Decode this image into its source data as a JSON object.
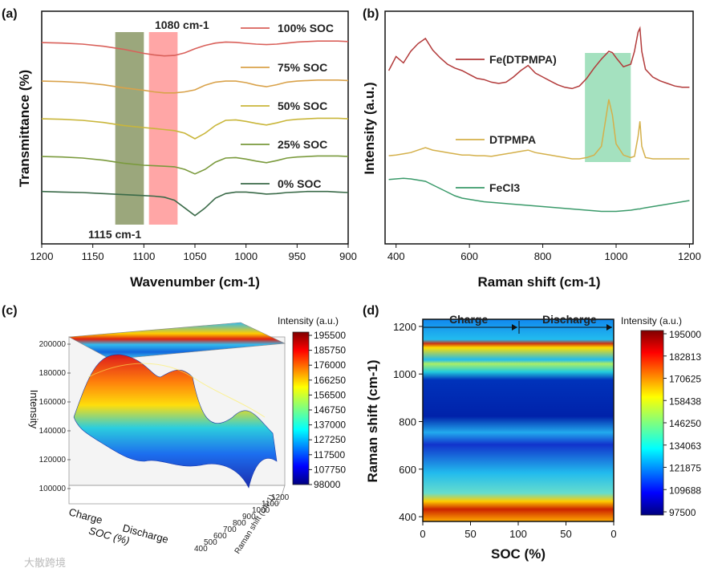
{
  "panels": {
    "a": "(a)",
    "b": "(b)",
    "c": "(c)",
    "d": "(d)"
  },
  "watermark": "大散跨境",
  "colors": {
    "soc100": "#d9605a",
    "soc75": "#d9a24a",
    "soc50": "#c9b63a",
    "soc25": "#7a9a3c",
    "soc0": "#3a6a48",
    "fe_dtpmpa": "#b23a3a",
    "dtpmpa": "#d4b04a",
    "fecl3": "#3a9a6a",
    "band1115": "#7a8a50",
    "band1080": "#ff6a6a",
    "raman_box": "#5ac88a"
  },
  "chart_data": [
    {
      "panel": "a",
      "type": "line",
      "title": "",
      "xlabel": "Wavenumber (cm-1)",
      "ylabel": "Transmittance (%)",
      "xlim": [
        1200,
        900
      ],
      "x_reversed": true,
      "xticks": [
        1200,
        1150,
        1100,
        1050,
        1000,
        950,
        900
      ],
      "annotations": [
        "1080 cm-1",
        "1115 cm-1"
      ],
      "bands": [
        {
          "label": "1115 cm-1",
          "from": 1128,
          "to": 1100
        },
        {
          "label": "1080 cm-1",
          "from": 1095,
          "to": 1067
        }
      ],
      "x": [
        1200,
        1180,
        1160,
        1140,
        1120,
        1100,
        1090,
        1080,
        1070,
        1060,
        1050,
        1040,
        1030,
        1020,
        1010,
        1000,
        990,
        980,
        970,
        960,
        950,
        940,
        930,
        920,
        910,
        900
      ],
      "series": [
        {
          "name": "100% SOC",
          "offset": 4,
          "values": [
            0.06,
            0.04,
            0.0,
            -0.08,
            -0.2,
            -0.36,
            -0.42,
            -0.46,
            -0.44,
            -0.34,
            -0.18,
            -0.05,
            0.04,
            0.08,
            0.07,
            0.03,
            0.0,
            -0.02,
            0.0,
            0.04,
            0.08,
            0.1,
            0.12,
            0.12,
            0.12,
            0.1
          ]
        },
        {
          "name": "75% SOC",
          "offset": 3,
          "values": [
            0.06,
            0.04,
            0.0,
            -0.08,
            -0.2,
            -0.3,
            -0.36,
            -0.4,
            -0.4,
            -0.36,
            -0.28,
            -0.1,
            0.02,
            0.06,
            0.06,
            0.0,
            -0.1,
            -0.16,
            -0.08,
            0.02,
            0.06,
            0.08,
            0.1,
            0.1,
            0.1,
            0.08
          ]
        },
        {
          "name": "50% SOC",
          "offset": 2,
          "values": [
            0.06,
            0.04,
            0.0,
            -0.08,
            -0.2,
            -0.28,
            -0.32,
            -0.36,
            -0.4,
            -0.5,
            -0.72,
            -0.5,
            -0.2,
            0.0,
            0.02,
            -0.04,
            -0.12,
            -0.18,
            -0.1,
            0.0,
            0.04,
            0.06,
            0.08,
            0.08,
            0.08,
            0.06
          ]
        },
        {
          "name": "25% SOC",
          "offset": 1,
          "values": [
            0.06,
            0.04,
            0.0,
            -0.08,
            -0.2,
            -0.28,
            -0.3,
            -0.32,
            -0.34,
            -0.44,
            -0.62,
            -0.44,
            -0.16,
            0.0,
            0.02,
            -0.04,
            -0.12,
            -0.18,
            -0.1,
            0.0,
            0.04,
            0.06,
            0.08,
            0.08,
            0.08,
            0.06
          ]
        },
        {
          "name": "0% SOC",
          "offset": 0,
          "values": [
            0.04,
            0.02,
            0.0,
            -0.04,
            -0.08,
            -0.12,
            -0.14,
            -0.18,
            -0.3,
            -0.6,
            -0.9,
            -0.6,
            -0.22,
            -0.04,
            0.02,
            0.02,
            -0.02,
            -0.06,
            -0.04,
            0.0,
            0.02,
            0.04,
            0.04,
            0.04,
            0.02,
            0.0
          ]
        }
      ]
    },
    {
      "panel": "b",
      "type": "line",
      "title": "",
      "xlabel": "Raman shift (cm-1)",
      "ylabel": "Intensity (a.u.)",
      "xlim": [
        370,
        1210
      ],
      "xticks": [
        400,
        600,
        800,
        1000,
        1200
      ],
      "highlight_box": [
        915,
        1040
      ],
      "x": [
        380,
        400,
        420,
        440,
        460,
        480,
        500,
        520,
        540,
        560,
        580,
        600,
        620,
        640,
        660,
        680,
        700,
        720,
        740,
        760,
        780,
        800,
        820,
        840,
        860,
        880,
        900,
        920,
        940,
        960,
        980,
        990,
        1000,
        1020,
        1040,
        1050,
        1060,
        1065,
        1070,
        1080,
        1100,
        1120,
        1140,
        1160,
        1180,
        1200
      ],
      "series": [
        {
          "name": "Fe(DTPMPA)",
          "offset": 2,
          "values": [
            0.3,
            0.52,
            0.42,
            0.6,
            0.72,
            0.8,
            0.62,
            0.5,
            0.4,
            0.34,
            0.3,
            0.24,
            0.18,
            0.16,
            0.12,
            0.1,
            0.12,
            0.2,
            0.3,
            0.38,
            0.26,
            0.2,
            0.14,
            0.08,
            0.04,
            0.02,
            0.06,
            0.18,
            0.34,
            0.48,
            0.6,
            0.58,
            0.5,
            0.36,
            0.4,
            0.6,
            0.9,
            0.96,
            0.6,
            0.32,
            0.2,
            0.14,
            0.1,
            0.06,
            0.04,
            0.04
          ]
        },
        {
          "name": "DTPMPA",
          "offset": 1,
          "values": [
            0.05,
            0.06,
            0.08,
            0.1,
            0.14,
            0.18,
            0.14,
            0.12,
            0.1,
            0.08,
            0.06,
            0.06,
            0.05,
            0.05,
            0.04,
            0.06,
            0.08,
            0.1,
            0.12,
            0.14,
            0.1,
            0.08,
            0.06,
            0.04,
            0.02,
            0.0,
            0.0,
            0.02,
            0.06,
            0.2,
            0.95,
            0.7,
            0.24,
            0.06,
            0.02,
            0.04,
            0.36,
            0.6,
            0.2,
            0.02,
            0.0,
            0.0,
            0.0,
            0.0,
            0.0,
            0.0
          ]
        },
        {
          "name": "FeCl3",
          "offset": 0,
          "values": [
            0.55,
            0.56,
            0.57,
            0.56,
            0.54,
            0.52,
            0.46,
            0.4,
            0.34,
            0.28,
            0.24,
            0.22,
            0.2,
            0.18,
            0.17,
            0.16,
            0.15,
            0.14,
            0.13,
            0.12,
            0.11,
            0.1,
            0.09,
            0.08,
            0.07,
            0.06,
            0.05,
            0.04,
            0.03,
            0.02,
            0.02,
            0.02,
            0.02,
            0.03,
            0.04,
            0.05,
            0.06,
            0.06,
            0.07,
            0.08,
            0.1,
            0.12,
            0.14,
            0.16,
            0.18,
            0.2
          ]
        }
      ]
    },
    {
      "panel": "c",
      "type": "heatmap",
      "title": "",
      "zlabel": "Intensity",
      "zticks": [
        "200000",
        "180000",
        "160000",
        "140000",
        "120000",
        "100000"
      ],
      "soc_label": "SOC (%)",
      "soc_ticks": [
        "Charge",
        "Discharge"
      ],
      "raman_label": "Raman shift (cm-1)",
      "raman_ticks": [
        "1200",
        "1100",
        "1000",
        "900",
        "800",
        "700",
        "600",
        "500",
        "400"
      ],
      "colorbar": {
        "label": "Intensity (a.u.)",
        "ticks": [
          "195500",
          "185750",
          "176000",
          "166250",
          "156500",
          "146750",
          "137000",
          "127250",
          "117500",
          "107750",
          "98000"
        ]
      }
    },
    {
      "panel": "d",
      "type": "heatmap",
      "title": "",
      "xlabel": "SOC (%)",
      "ylabel": "Raman shift (cm-1)",
      "xticks": [
        "0",
        "50",
        "100",
        "50",
        "0"
      ],
      "yticks": [
        400,
        600,
        800,
        1000,
        1200
      ],
      "ylim": [
        380,
        1230
      ],
      "phases": [
        "Charge",
        "Discharge"
      ],
      "colorbar": {
        "label": "Intensity (a.u.)",
        "ticks": [
          "195000",
          "182813",
          "170625",
          "158438",
          "146250",
          "134063",
          "121875",
          "109688",
          "97500"
        ]
      }
    }
  ]
}
